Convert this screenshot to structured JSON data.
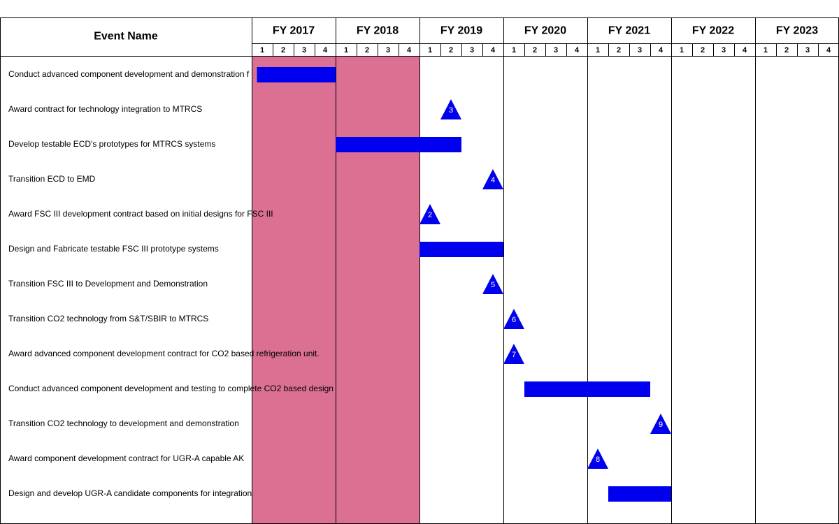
{
  "chart_data": {
    "type": "gantt",
    "header": {
      "event_column": "Event Name"
    },
    "fiscal_years": [
      "FY 2017",
      "FY 2018",
      "FY 2019",
      "FY 2020",
      "FY 2021",
      "FY 2022",
      "FY 2023"
    ],
    "quarters": [
      "1",
      "2",
      "3",
      "4"
    ],
    "highlight": {
      "from": "FY 2017 Q1",
      "to": "FY 2018 Q4",
      "start": 0,
      "end": 8,
      "color": "#db7093"
    },
    "colors": {
      "bar": "#0000ee",
      "milestone": "#0000ee",
      "milestone_text": "#ffffff",
      "grid": "#000000"
    },
    "events": [
      {
        "name": "Conduct advanced component development and demonstration f",
        "kind": "bar",
        "start": 0.25,
        "end": 4.0
      },
      {
        "name": "Award contract for technology integration to MTRCS",
        "kind": "milestone",
        "at": 9.5,
        "label": "3"
      },
      {
        "name": "Develop testable ECD's prototypes for MTRCS systems",
        "kind": "bar",
        "start": 4.0,
        "end": 10.0
      },
      {
        "name": "Transition ECD to EMD",
        "kind": "milestone",
        "at": 11.5,
        "label": "4"
      },
      {
        "name": "Award FSC III development contract based on initial designs for FSC III",
        "kind": "milestone",
        "at": 8.5,
        "label": "2"
      },
      {
        "name": "Design and Fabricate testable FSC III prototype systems",
        "kind": "bar",
        "start": 8.0,
        "end": 12.0
      },
      {
        "name": "Transition FSC III to Development and Demonstration",
        "kind": "milestone",
        "at": 11.5,
        "label": "5"
      },
      {
        "name": "Transition CO2 technology from S&T/SBIR to MTRCS",
        "kind": "milestone",
        "at": 12.5,
        "label": "6"
      },
      {
        "name": "Award advanced component development contract for CO2 based refrigeration unit.",
        "kind": "milestone",
        "at": 12.5,
        "label": "7"
      },
      {
        "name": "Conduct advanced component development and testing to complete CO2 based design",
        "kind": "bar",
        "start": 13.0,
        "end": 19.0
      },
      {
        "name": "Transition CO2 technology to development and demonstration",
        "kind": "milestone",
        "at": 19.5,
        "label": "9"
      },
      {
        "name": "Award component development contract for UGR-A capable AK",
        "kind": "milestone",
        "at": 16.5,
        "label": "8"
      },
      {
        "name": "Design and develop UGR-A candidate components for integration",
        "kind": "bar",
        "start": 17.0,
        "end": 20.0
      }
    ]
  }
}
